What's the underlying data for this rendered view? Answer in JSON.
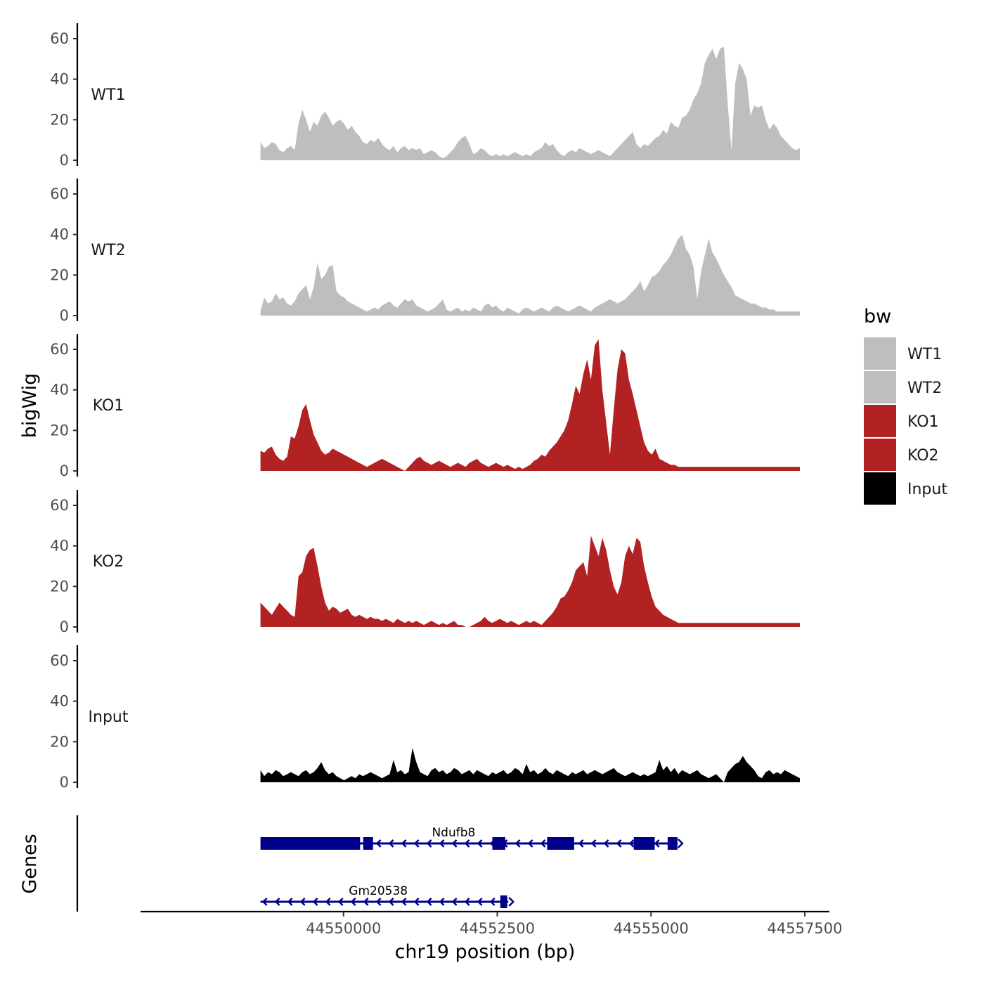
{
  "chart_data": {
    "type": "area",
    "ylabel": "bigWig",
    "xlabel": "chr19 position (bp)",
    "genes_label": "Genes",
    "x_range": [
      44546700,
      44557900
    ],
    "data_x_range": [
      44548650,
      44557420
    ],
    "ylim": [
      0,
      68
    ],
    "y_ticks": [
      0,
      20,
      40,
      60
    ],
    "x_ticks": [
      44550000,
      44552500,
      44555000,
      44557500
    ],
    "x_tick_labels": [
      "44550000",
      "44552500",
      "44555000",
      "44557500"
    ],
    "legend": {
      "title": "bw",
      "entries": [
        {
          "label": "WT1",
          "color": "#bebebe"
        },
        {
          "label": "WT2",
          "color": "#bebebe"
        },
        {
          "label": "KO1",
          "color": "#b22222"
        },
        {
          "label": "KO2",
          "color": "#b22222"
        },
        {
          "label": "Input",
          "color": "#000000"
        }
      ]
    },
    "series": [
      {
        "name": "WT1",
        "color": "#bebebe",
        "values": [
          9,
          6,
          7,
          9,
          8,
          5,
          4,
          6,
          7,
          5,
          18,
          25,
          20,
          14,
          19,
          17,
          22,
          24,
          21,
          17,
          19,
          20,
          18,
          15,
          17,
          14,
          12,
          9,
          8,
          10,
          9,
          11,
          8,
          6,
          5,
          7,
          4,
          6,
          7,
          5,
          6,
          5,
          6,
          3,
          4,
          5,
          4,
          2,
          1,
          2,
          4,
          6,
          9,
          11,
          12,
          8,
          3,
          4,
          6,
          5,
          3,
          2,
          3,
          2,
          3,
          2,
          3,
          4,
          3,
          2,
          3,
          2,
          4,
          5,
          6,
          9,
          7,
          8,
          5,
          3,
          2,
          4,
          5,
          4,
          6,
          5,
          4,
          3,
          4,
          5,
          4,
          3,
          2,
          4,
          6,
          8,
          10,
          12,
          14,
          8,
          6,
          8,
          7,
          9,
          11,
          12,
          15,
          13,
          19,
          17,
          16,
          21,
          22,
          25,
          30,
          33,
          38,
          48,
          52,
          55,
          50,
          55,
          56,
          28,
          5,
          38,
          48,
          45,
          40,
          22,
          27,
          26,
          27,
          20,
          15,
          18,
          16,
          12,
          10,
          8,
          6,
          5,
          6
        ]
      },
      {
        "name": "WT2",
        "color": "#bebebe",
        "values": [
          2,
          9,
          6,
          7,
          11,
          8,
          9,
          6,
          5,
          7,
          11,
          13,
          15,
          8,
          14,
          26,
          18,
          20,
          24,
          25,
          12,
          10,
          9,
          7,
          6,
          5,
          4,
          3,
          2,
          3,
          4,
          3,
          5,
          6,
          7,
          5,
          4,
          6,
          8,
          7,
          8,
          5,
          4,
          3,
          2,
          3,
          4,
          6,
          8,
          3,
          2,
          3,
          4,
          2,
          3,
          2,
          4,
          3,
          2,
          5,
          6,
          4,
          5,
          3,
          2,
          4,
          3,
          2,
          1,
          3,
          4,
          3,
          2,
          3,
          4,
          3,
          2,
          4,
          5,
          4,
          3,
          2,
          3,
          4,
          5,
          4,
          3,
          2,
          4,
          5,
          6,
          7,
          8,
          7,
          6,
          7,
          8,
          10,
          12,
          14,
          17,
          12,
          15,
          19,
          20,
          22,
          25,
          27,
          30,
          34,
          38,
          40,
          33,
          30,
          24,
          8,
          22,
          30,
          38,
          31,
          28,
          24,
          20,
          17,
          14,
          10,
          9,
          8,
          7,
          6,
          6,
          5,
          4,
          4,
          3,
          3,
          2,
          2,
          2,
          2,
          2,
          2,
          2
        ]
      },
      {
        "name": "KO1",
        "color": "#b22222",
        "values": [
          10,
          9,
          11,
          12,
          8,
          6,
          5,
          7,
          17,
          16,
          22,
          30,
          33,
          25,
          18,
          14,
          10,
          8,
          9,
          11,
          10,
          9,
          8,
          7,
          6,
          5,
          4,
          3,
          2,
          3,
          4,
          5,
          6,
          5,
          4,
          3,
          2,
          1,
          0,
          2,
          4,
          6,
          7,
          5,
          4,
          3,
          4,
          5,
          4,
          3,
          2,
          3,
          4,
          3,
          2,
          4,
          5,
          6,
          4,
          3,
          2,
          3,
          4,
          3,
          2,
          3,
          2,
          1,
          2,
          1,
          2,
          3,
          5,
          6,
          8,
          7,
          10,
          12,
          14,
          17,
          20,
          25,
          33,
          42,
          38,
          48,
          55,
          45,
          62,
          65,
          40,
          24,
          8,
          30,
          50,
          60,
          58,
          45,
          38,
          30,
          22,
          14,
          10,
          8,
          11,
          6,
          5,
          4,
          3,
          3,
          2,
          2,
          2,
          2,
          2,
          2,
          2,
          2,
          2,
          2,
          2,
          2,
          2,
          2,
          2,
          2,
          2,
          2,
          2,
          2,
          2,
          2,
          2,
          2,
          2,
          2,
          2,
          2,
          2,
          2,
          2,
          2,
          2
        ]
      },
      {
        "name": "KO2",
        "color": "#b22222",
        "values": [
          12,
          10,
          8,
          6,
          9,
          12,
          10,
          8,
          6,
          5,
          25,
          27,
          35,
          38,
          39,
          30,
          20,
          12,
          8,
          10,
          9,
          7,
          8,
          9,
          6,
          5,
          6,
          5,
          4,
          5,
          4,
          4,
          3,
          4,
          3,
          2,
          4,
          3,
          2,
          3,
          2,
          3,
          2,
          1,
          2,
          3,
          2,
          1,
          2,
          1,
          2,
          3,
          1,
          1,
          0,
          0,
          1,
          2,
          3,
          5,
          3,
          2,
          3,
          4,
          3,
          2,
          3,
          2,
          1,
          2,
          3,
          2,
          3,
          2,
          1,
          3,
          5,
          7,
          10,
          14,
          15,
          18,
          22,
          28,
          30,
          32,
          25,
          45,
          40,
          35,
          44,
          38,
          28,
          20,
          16,
          22,
          35,
          40,
          36,
          44,
          42,
          30,
          22,
          15,
          10,
          8,
          6,
          5,
          4,
          3,
          2,
          2,
          2,
          2,
          2,
          2,
          2,
          2,
          2,
          2,
          2,
          2,
          2,
          2,
          2,
          2,
          2,
          2,
          2,
          2,
          2,
          2,
          2,
          2,
          2,
          2,
          2,
          2,
          2,
          2,
          2,
          2,
          2
        ]
      },
      {
        "name": "Input",
        "color": "#000000",
        "values": [
          6,
          3,
          5,
          4,
          6,
          5,
          3,
          4,
          5,
          4,
          3,
          5,
          6,
          4,
          5,
          7,
          10,
          6,
          4,
          5,
          3,
          2,
          1,
          2,
          3,
          2,
          4,
          3,
          4,
          5,
          4,
          3,
          2,
          3,
          4,
          11,
          5,
          6,
          4,
          5,
          17,
          10,
          5,
          4,
          3,
          6,
          7,
          5,
          6,
          4,
          5,
          7,
          6,
          4,
          5,
          6,
          4,
          6,
          5,
          4,
          3,
          5,
          4,
          5,
          6,
          4,
          5,
          7,
          6,
          4,
          9,
          5,
          6,
          4,
          5,
          7,
          5,
          4,
          6,
          5,
          4,
          3,
          5,
          4,
          5,
          6,
          4,
          5,
          6,
          5,
          4,
          5,
          6,
          7,
          5,
          4,
          3,
          4,
          5,
          4,
          3,
          4,
          3,
          4,
          5,
          11,
          6,
          8,
          5,
          7,
          4,
          6,
          5,
          4,
          5,
          6,
          4,
          3,
          2,
          3,
          4,
          2,
          0,
          5,
          7,
          9,
          10,
          13,
          10,
          8,
          6,
          3,
          2,
          5,
          6,
          4,
          5,
          4,
          6,
          5,
          4,
          3,
          2
        ]
      }
    ],
    "genes": [
      {
        "name": "Ndufb8",
        "strand": "-",
        "start": 44548650,
        "end": 44555430,
        "exons": [
          [
            44548650,
            44550270
          ],
          [
            44550320,
            44550480
          ],
          [
            44552420,
            44552630
          ],
          [
            44553310,
            44553750
          ],
          [
            44554720,
            44555060
          ],
          [
            44555270,
            44555430
          ]
        ]
      },
      {
        "name": "Gm20538",
        "strand": "-",
        "start": 44548650,
        "end": 44552680,
        "exons": [
          [
            44552550,
            44552660
          ]
        ]
      }
    ]
  }
}
